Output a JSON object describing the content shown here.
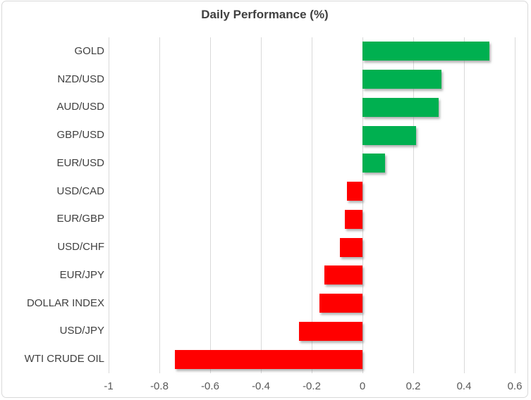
{
  "chart_data": {
    "type": "bar",
    "orientation": "horizontal",
    "title": "Daily Performance (%)",
    "categories": [
      "GOLD",
      "NZD/USD",
      "AUD/USD",
      "GBP/USD",
      "EUR/USD",
      "USD/CAD",
      "EUR/GBP",
      "USD/CHF",
      "EUR/JPY",
      "DOLLAR INDEX",
      "USD/JPY",
      "WTI CRUDE OIL"
    ],
    "values": [
      0.5,
      0.31,
      0.3,
      0.21,
      0.09,
      -0.06,
      -0.07,
      -0.09,
      -0.15,
      -0.17,
      -0.25,
      -0.74
    ],
    "xlabel": "",
    "ylabel": "",
    "xlim": [
      -1,
      0.6
    ],
    "x_ticks": [
      -1,
      -0.8,
      -0.6,
      -0.4,
      -0.2,
      0,
      0.2,
      0.4,
      0.6
    ],
    "x_tick_labels": [
      "-1",
      "-0.8",
      "-0.6",
      "-0.4",
      "-0.2",
      "0",
      "0.2",
      "0.4",
      "0.6"
    ],
    "grid": "vertical",
    "legend": "none",
    "colors": {
      "positive": "#00B050",
      "negative": "#FF0000",
      "gridline": "#D9D9D9",
      "title_text": "#404040",
      "label_text": "#404040",
      "tick_text": "#595959",
      "border": "#D9D9D9",
      "background": "#FFFFFF"
    }
  }
}
